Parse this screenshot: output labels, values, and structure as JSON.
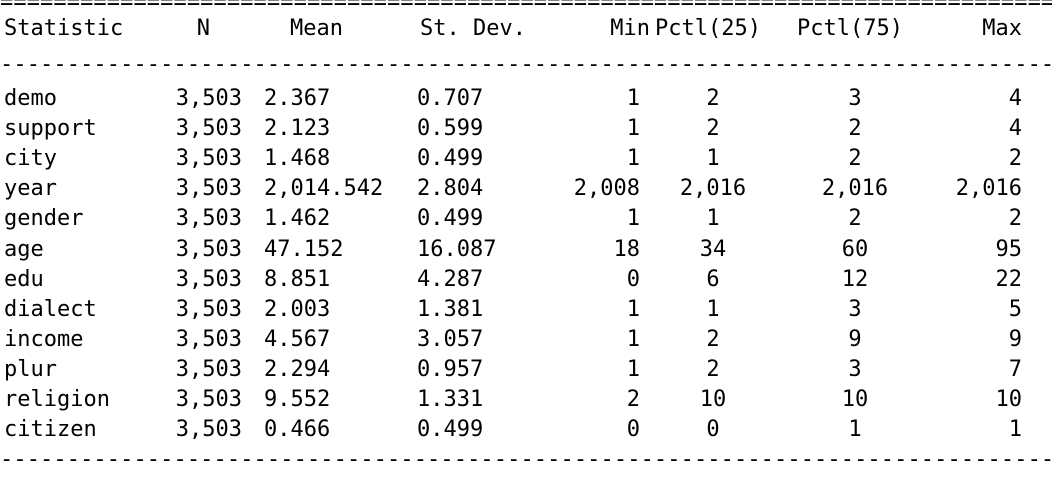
{
  "table": {
    "top_rule": "================================================================================",
    "mid_rule": "--------------------------------------------------------------------------------",
    "bottom_rule": "--------------------------------------------------------------------------------",
    "headers": [
      "Statistic",
      "N",
      "Mean",
      "St. Dev.",
      "Min",
      "Pctl(25)",
      "Pctl(75)",
      "Max"
    ],
    "rows": [
      [
        "demo",
        "3,503",
        "2.367",
        "0.707",
        "1",
        "2",
        "3",
        "4"
      ],
      [
        "support",
        "3,503",
        "2.123",
        "0.599",
        "1",
        "2",
        "2",
        "4"
      ],
      [
        "city",
        "3,503",
        "1.468",
        "0.499",
        "1",
        "1",
        "2",
        "2"
      ],
      [
        "year",
        "3,503",
        "2,014.542",
        "2.804",
        "2,008",
        "2,016",
        "2,016",
        "2,016"
      ],
      [
        "gender",
        "3,503",
        "1.462",
        "0.499",
        "1",
        "1",
        "2",
        "2"
      ],
      [
        "age",
        "3,503",
        "47.152",
        "16.087",
        "18",
        "34",
        "60",
        "95"
      ],
      [
        "edu",
        "3,503",
        "8.851",
        "4.287",
        "0",
        "6",
        "12",
        "22"
      ],
      [
        "dialect",
        "3,503",
        "2.003",
        "1.381",
        "1",
        "1",
        "3",
        "5"
      ],
      [
        "income",
        "3,503",
        "4.567",
        "3.057",
        "1",
        "2",
        "9",
        "9"
      ],
      [
        "plur",
        "3,503",
        "2.294",
        "0.957",
        "1",
        "2",
        "3",
        "7"
      ],
      [
        "religion",
        "3,503",
        "9.552",
        "1.331",
        "2",
        "10",
        "10",
        "10"
      ],
      [
        "citizen",
        "3,503",
        "0.466",
        "0.499",
        "0",
        "0",
        "1",
        "1"
      ]
    ]
  }
}
